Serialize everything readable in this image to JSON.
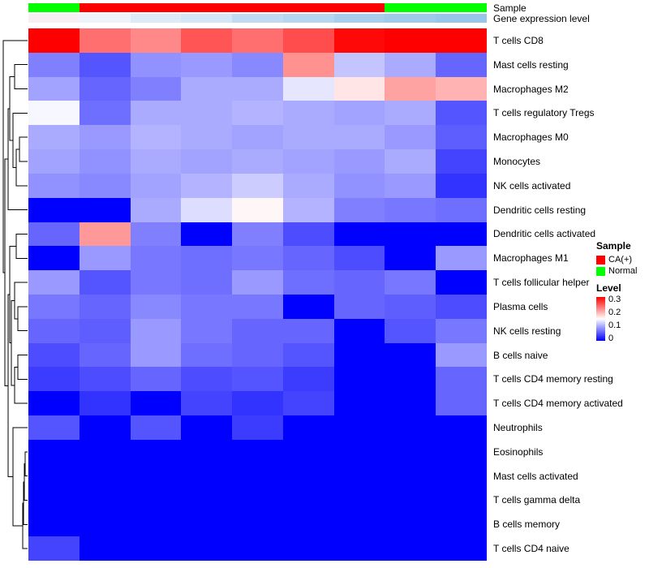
{
  "annotations": {
    "sample_label": "Sample",
    "gene_label": "Gene expression level",
    "sample_groups": [
      "Normal",
      "CA(+)",
      "CA(+)",
      "CA(+)",
      "CA(+)",
      "CA(+)",
      "CA(+)",
      "Normal",
      "Normal"
    ],
    "sample_colors": {
      "CA(+)": "#ff0000",
      "Normal": "#00ff00"
    },
    "gene_expression_colors": [
      "#f7eff2",
      "#eff3fa",
      "#ddeaf7",
      "#d4e5f5",
      "#c0dbf1",
      "#b6d6ef",
      "#a8ceec",
      "#a0caea",
      "#98c6e9"
    ]
  },
  "chart_data": {
    "type": "heatmap",
    "n_cols": 9,
    "rows": [
      "T cells CD8",
      "Mast cells resting",
      "Macrophages M2",
      "T cells regulatory Tregs",
      "Macrophages M0",
      "Monocytes",
      "NK cells activated",
      "Dendritic cells resting",
      "Dendritic cells activated",
      "Macrophages M1",
      "T cells follicular helper",
      "Plasma cells",
      "NK cells resting",
      "B cells naive",
      "T cells CD4 memory resting",
      "T cells CD4 memory activated",
      "Neutrophils",
      "Eosinophils",
      "Mast cells activated",
      "T cells gamma delta",
      "B cells memory",
      "T cells CD4 naive"
    ],
    "values": [
      [
        0.3,
        0.235,
        0.22,
        0.25,
        0.235,
        0.255,
        0.295,
        0.3,
        0.3
      ],
      [
        0.075,
        0.05,
        0.085,
        0.09,
        0.08,
        0.215,
        0.115,
        0.1,
        0.06
      ],
      [
        0.095,
        0.06,
        0.075,
        0.1,
        0.1,
        0.135,
        0.165,
        0.205,
        0.195
      ],
      [
        0.145,
        0.065,
        0.1,
        0.1,
        0.105,
        0.1,
        0.095,
        0.1,
        0.05
      ],
      [
        0.1,
        0.09,
        0.105,
        0.1,
        0.095,
        0.1,
        0.1,
        0.09,
        0.055
      ],
      [
        0.095,
        0.085,
        0.1,
        0.095,
        0.1,
        0.095,
        0.09,
        0.1,
        0.04
      ],
      [
        0.085,
        0.08,
        0.095,
        0.105,
        0.12,
        0.1,
        0.085,
        0.09,
        0.03
      ],
      [
        0.0,
        0.0,
        0.1,
        0.13,
        0.155,
        0.105,
        0.075,
        0.07,
        0.065
      ],
      [
        0.06,
        0.21,
        0.075,
        0.0,
        0.075,
        0.045,
        0.0,
        0.0,
        0.0
      ],
      [
        0.0,
        0.09,
        0.07,
        0.065,
        0.07,
        0.06,
        0.045,
        0.0,
        0.09
      ],
      [
        0.09,
        0.05,
        0.07,
        0.065,
        0.09,
        0.065,
        0.06,
        0.07,
        0.0
      ],
      [
        0.07,
        0.06,
        0.08,
        0.07,
        0.07,
        0.0,
        0.06,
        0.055,
        0.045
      ],
      [
        0.06,
        0.055,
        0.09,
        0.07,
        0.06,
        0.06,
        0.0,
        0.05,
        0.07
      ],
      [
        0.045,
        0.06,
        0.09,
        0.065,
        0.06,
        0.05,
        0.0,
        0.0,
        0.09
      ],
      [
        0.035,
        0.045,
        0.06,
        0.045,
        0.05,
        0.035,
        0.0,
        0.0,
        0.06
      ],
      [
        0.0,
        0.03,
        0.0,
        0.04,
        0.03,
        0.04,
        0.0,
        0.0,
        0.06
      ],
      [
        0.05,
        0.0,
        0.05,
        0.0,
        0.035,
        0.0,
        0.0,
        0.0,
        0.0
      ],
      [
        0.0,
        0.0,
        0.0,
        0.0,
        0.0,
        0.0,
        0.0,
        0.0,
        0.0
      ],
      [
        0.0,
        0.0,
        0.0,
        0.0,
        0.0,
        0.0,
        0.0,
        0.0,
        0.0
      ],
      [
        0.0,
        0.0,
        0.0,
        0.0,
        0.0,
        0.0,
        0.0,
        0.0,
        0.0
      ],
      [
        0.0,
        0.0,
        0.0,
        0.0,
        0.0,
        0.0,
        0.0,
        0.0,
        0.0
      ],
      [
        0.04,
        0.0,
        0.0,
        0.0,
        0.0,
        0.0,
        0.0,
        0.0,
        0.0
      ]
    ],
    "color_scale": {
      "min": 0,
      "mid": 0.15,
      "max": 0.3,
      "min_color": "#0000ff",
      "mid_color": "#ffffff",
      "max_color": "#ff0000"
    },
    "row_dendrogram_paths": [
      "M32,44.7 H16 V74.5 H32",
      "M32,134.2 H22 V164 H32",
      "M22,149.1 H18 V193.8 H32",
      "M32,104.4 H14 V171.5 H18",
      "M16,59.6 H10 V138 H14",
      "M10,98.8 H8 V223.6 H32",
      "M32,253.5 H18 V283.3 H32",
      "M32,342.9 H20 V372.7 H32",
      "M32,313.1 H16 V357.8 H20",
      "M32,402.5 H20 V432.4 H32",
      "M20,417.5 H16 V462.2 H32",
      "M16,335.5 H12 V439.9 H16",
      "M18,268.4 H10 V387.7 H12",
      "M32,521.8 H29 V551.6 H32",
      "M29,536.7 H28 V581.5 H32",
      "M28,559.1 H27 V611.3 H32",
      "M27,585.2 H26 V641.1 H32",
      "M32,492 H14 V613.2 H26",
      "M10,328.1 H8 V552.6 H14",
      "M8,161.2 H4 V440.4 H8",
      "M32,14.9 H2 V300.8 H4"
    ]
  },
  "legend": {
    "sample": {
      "title": "Sample",
      "entries": [
        {
          "label": "CA(+)",
          "color": "#ff0000"
        },
        {
          "label": "Normal",
          "color": "#00ff00"
        }
      ]
    },
    "level": {
      "title": "Level",
      "ticks": [
        "0.3",
        "0.2",
        "0.1",
        "0"
      ]
    }
  }
}
